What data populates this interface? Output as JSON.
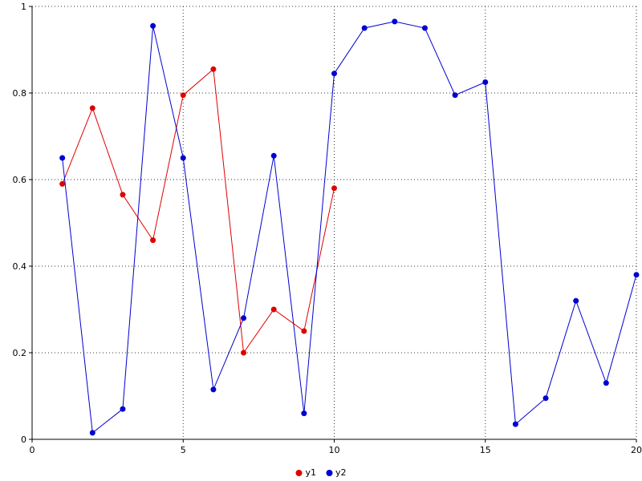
{
  "chart_data": {
    "type": "line",
    "title": "",
    "xlabel": "",
    "ylabel": "",
    "xlim": [
      0,
      20
    ],
    "ylim": [
      0,
      1
    ],
    "x_ticks": [
      0,
      5,
      10,
      15,
      20
    ],
    "y_ticks": [
      0,
      0.2,
      0.4,
      0.6,
      0.8,
      1
    ],
    "grid": true,
    "legend_position": "bottom-center",
    "marker": "filled-circle",
    "series": [
      {
        "name": "y1",
        "color": "#e00000",
        "x": [
          1,
          2,
          3,
          4,
          5,
          6,
          7,
          8,
          9,
          10
        ],
        "values": [
          0.59,
          0.765,
          0.565,
          0.46,
          0.795,
          0.855,
          0.2,
          0.3,
          0.25,
          0.58
        ]
      },
      {
        "name": "y2",
        "color": "#0000d0",
        "x": [
          1,
          2,
          3,
          4,
          5,
          6,
          7,
          8,
          9,
          10,
          11,
          12,
          13,
          14,
          15,
          16,
          17,
          18,
          19,
          20
        ],
        "values": [
          0.65,
          0.015,
          0.07,
          0.955,
          0.65,
          0.115,
          0.28,
          0.655,
          0.06,
          0.845,
          0.95,
          0.965,
          0.95,
          0.795,
          0.825,
          0.035,
          0.095,
          0.32,
          0.13,
          0.38
        ]
      }
    ]
  }
}
